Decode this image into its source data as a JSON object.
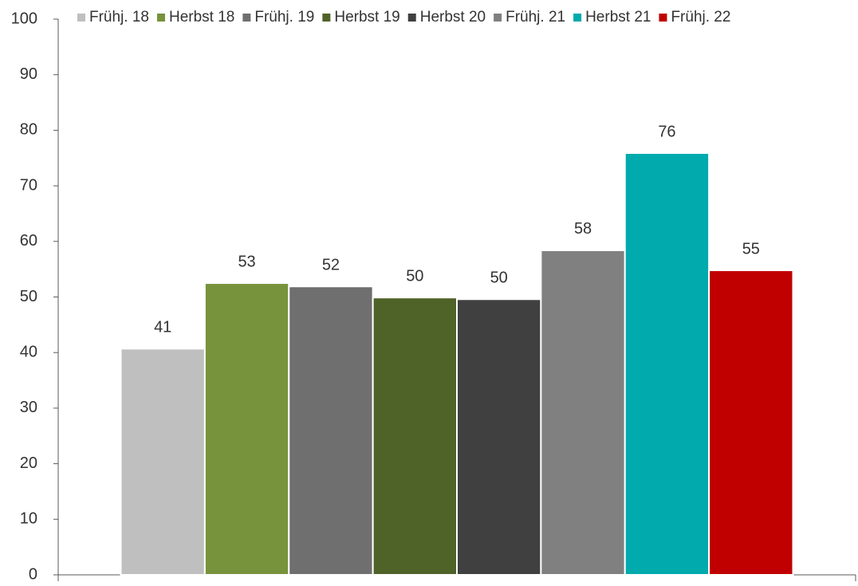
{
  "chart_data": {
    "type": "bar",
    "categories": [
      null
    ],
    "series": [
      {
        "name": "Frühj. 18",
        "color": "#bfbfbf",
        "values": [
          40.7
        ],
        "value_labels": [
          "41"
        ]
      },
      {
        "name": "Herbst 18",
        "color": "#77933c",
        "values": [
          52.5
        ],
        "value_labels": [
          "53"
        ]
      },
      {
        "name": "Frühj. 19",
        "color": "#6f6f6f",
        "values": [
          51.9
        ],
        "value_labels": [
          "52"
        ]
      },
      {
        "name": "Herbst 19",
        "color": "#4f6228",
        "values": [
          49.9
        ],
        "value_labels": [
          "50"
        ]
      },
      {
        "name": "Herbst 20",
        "color": "#404040",
        "values": [
          49.6
        ],
        "value_labels": [
          "50"
        ]
      },
      {
        "name": "Frühj. 21",
        "color": "#808080",
        "values": [
          58.4
        ],
        "value_labels": [
          "58"
        ]
      },
      {
        "name": "Herbst 21",
        "color": "#00aaad",
        "values": [
          75.9
        ],
        "value_labels": [
          "76"
        ]
      },
      {
        "name": "Frühj. 22",
        "color": "#c00000",
        "values": [
          54.8
        ],
        "value_labels": [
          "55"
        ]
      }
    ],
    "ylim": [
      0,
      100
    ],
    "yticks": [
      0,
      10,
      20,
      30,
      40,
      50,
      60,
      70,
      80,
      90,
      100
    ],
    "grid": false,
    "legend": "top"
  }
}
